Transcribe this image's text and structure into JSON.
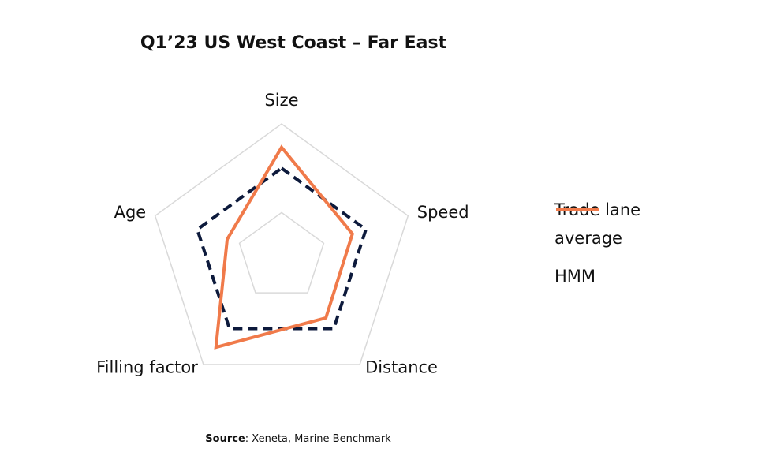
{
  "chart_data": {
    "type": "radar",
    "title": "Q1’23 US West Coast – Far East",
    "axes": [
      "Size",
      "Speed",
      "Distance",
      "Filling factor",
      "Age"
    ],
    "rlim": [
      0,
      3
    ],
    "rticks": [
      1,
      3
    ],
    "grid": true,
    "series": [
      {
        "name": "Trade lane average",
        "color": "#0d1a3c",
        "dash": true,
        "values": [
          2.0,
          2.0,
          2.0,
          2.0,
          2.0
        ]
      },
      {
        "name": "HMM",
        "color": "#f07a4a",
        "dash": false,
        "values": [
          2.47,
          1.68,
          1.7,
          2.52,
          1.29
        ]
      }
    ],
    "legend": "right",
    "source_label": "Source",
    "source_text": ": Xeneta, Marine Benchmark"
  }
}
